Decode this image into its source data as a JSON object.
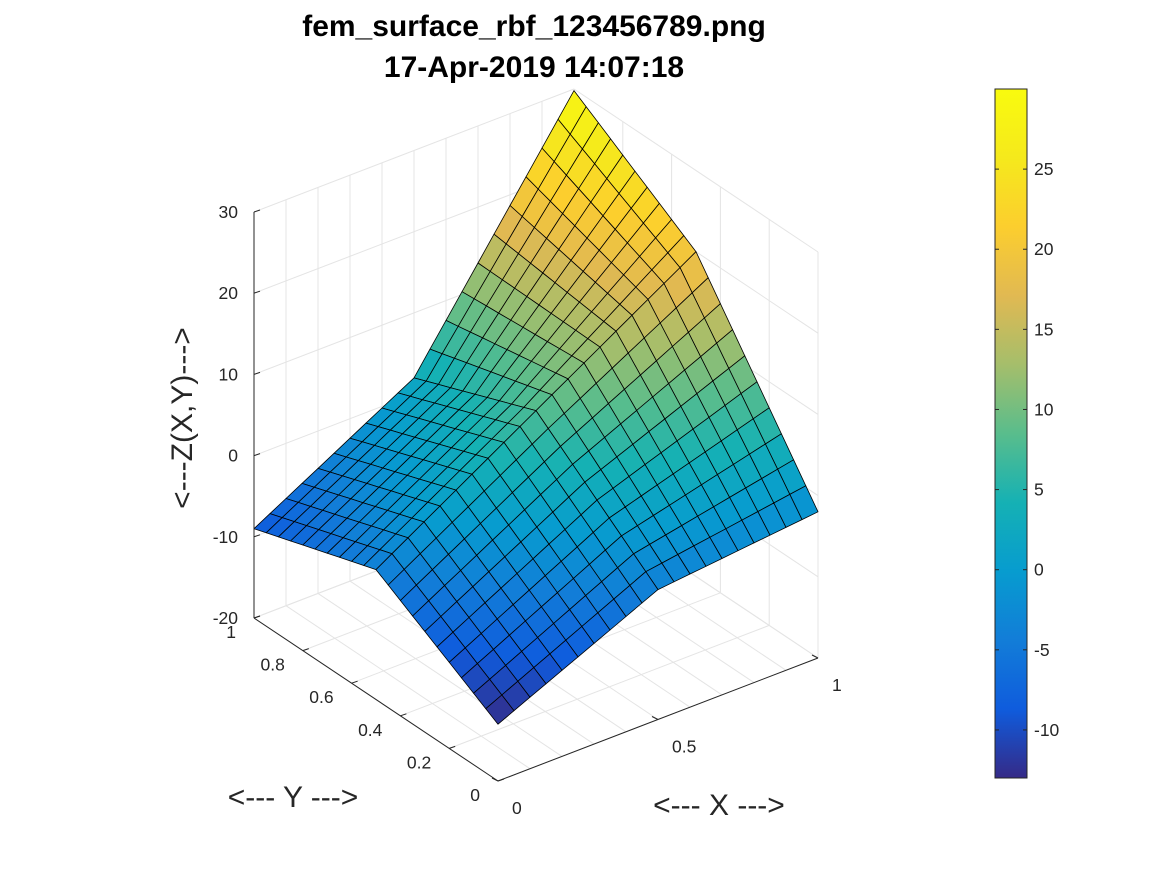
{
  "chart_data": {
    "type": "surface",
    "title": [
      "fem_surface_rbf_123456789.png",
      "17-Apr-2019 14:07:18"
    ],
    "xlabel": "<--- X --->",
    "ylabel": "<--- Y --->",
    "zlabel": "<---Z(X,Y)--->",
    "xlim": [
      0,
      1
    ],
    "ylim": [
      0,
      1
    ],
    "zlim": [
      -20,
      30
    ],
    "x_ticks": [
      "0",
      "0.5",
      "1"
    ],
    "y_ticks": [
      "0",
      "0.2",
      "0.4",
      "0.6",
      "0.8",
      "1"
    ],
    "z_ticks": [
      "-20",
      "-10",
      "0",
      "10",
      "20",
      "30"
    ],
    "grid": true,
    "colormap": "parula",
    "colorbar": {
      "location": "right",
      "range": [
        -13,
        30
      ],
      "ticks": [
        "-10",
        "-5",
        "0",
        "5",
        "10",
        "15",
        "20",
        "25"
      ]
    },
    "mesh_size": 21,
    "surface_samples": [
      {
        "x": 0,
        "y": 0,
        "z": -13
      },
      {
        "x": 0,
        "y": 0.5,
        "z": -4
      },
      {
        "x": 0,
        "y": 1,
        "z": -9
      },
      {
        "x": 0.5,
        "y": 0,
        "z": -4
      },
      {
        "x": 0.5,
        "y": 0.5,
        "z": 8
      },
      {
        "x": 0.5,
        "y": 1,
        "z": 2
      },
      {
        "x": 1,
        "y": 0,
        "z": -2
      },
      {
        "x": 1,
        "y": 0.5,
        "z": 20
      },
      {
        "x": 1,
        "y": 1,
        "z": 29.8
      }
    ]
  }
}
